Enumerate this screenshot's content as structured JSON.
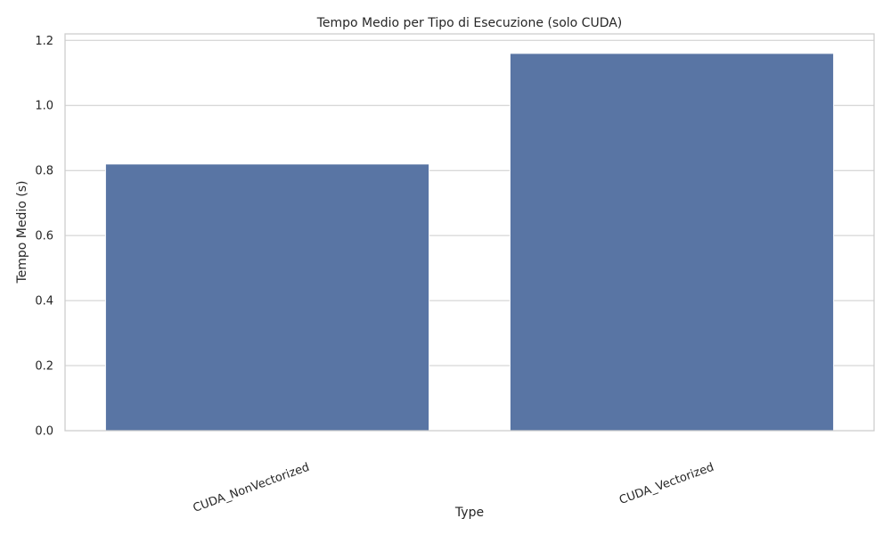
{
  "chart_data": {
    "type": "bar",
    "title": "Tempo Medio per Tipo di Esecuzione (solo CUDA)",
    "xlabel": "Type",
    "ylabel": "Tempo Medio (s)",
    "categories": [
      "CUDA_NonVectorized",
      "CUDA_Vectorized"
    ],
    "values": [
      0.82,
      1.16
    ],
    "ylim": [
      0,
      1.22
    ],
    "yticks": [
      0.0,
      0.2,
      0.4,
      0.6,
      0.8,
      1.0,
      1.2
    ],
    "ytick_labels": [
      "0.0",
      "0.2",
      "0.4",
      "0.6",
      "0.8",
      "1.0",
      "1.2"
    ],
    "grid": "horizontal",
    "bar_color": "#5975a4",
    "grid_color": "#cccccc",
    "frame_color": "#cccccc"
  }
}
